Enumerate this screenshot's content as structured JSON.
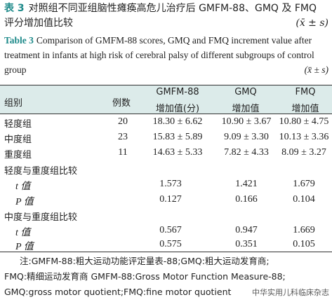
{
  "caption_cn": {
    "label": "表 3",
    "text": "对照组不同亚组脑性瘫痪高危儿治疗后 GMFM-88、GMQ 及 FMQ 评分增加值比较",
    "stat": "(x̄ ± s)"
  },
  "caption_en": {
    "label": "Table 3",
    "text": "Comparison of GMFM-88 scores, GMQ and FMQ increment value after treatment in infants at high risk of cerebral palsy of different subgroups of control group",
    "stat": "(x̄ ± s)"
  },
  "table": {
    "headers": {
      "group": "组别",
      "count": "例数",
      "gmfm_top": "GMFM-88",
      "gmfm_bottom": "增加值(分)",
      "gmq_top": "GMQ",
      "gmq_bottom": "增加值",
      "fmq_top": "FMQ",
      "fmq_bottom": "增加值"
    },
    "rows": [
      {
        "group": "轻度组",
        "count": "20",
        "gmfm": "18.30 ± 6.62",
        "gmq": "10.90 ± 3.67",
        "fmq": "10.80 ± 4.75"
      },
      {
        "group": "中度组",
        "count": "23",
        "gmfm": "15.83 ± 5.89",
        "gmq": "9.09 ± 3.30",
        "fmq": "10.13 ± 3.36"
      },
      {
        "group": "重度组",
        "count": "11",
        "gmfm": "14.63 ± 5.33",
        "gmq": "7.82 ± 4.33",
        "fmq": "8.09 ± 3.27"
      }
    ],
    "comparisons": [
      {
        "title": "轻度与重度组比较",
        "t_label": "t 值",
        "t": [
          "1.573",
          "1.421",
          "1.679"
        ],
        "p_label": "P 值",
        "p": [
          "0.127",
          "0.166",
          "0.104"
        ]
      },
      {
        "title": "中度与重度组比较",
        "t_label": "t 值",
        "t": [
          "0.567",
          "0.947",
          "1.669"
        ],
        "p_label": "P 值",
        "p": [
          "0.575",
          "0.351",
          "0.105"
        ]
      }
    ]
  },
  "note": {
    "line1": "注:GMFM-88:粗大运动功能评定量表-88;GMQ:粗大运动发育商;",
    "line2": "FMQ:精细运动发育商  GMFM-88:Gross Motor Function Measure-88;",
    "line3": "GMQ:gross motor quotient;FMQ:fine motor quotient"
  },
  "watermark": "中华实用儿科临床杂志"
}
